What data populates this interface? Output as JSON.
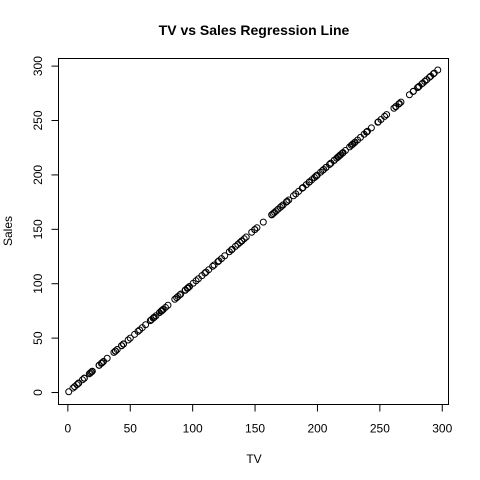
{
  "chart_data": {
    "type": "scatter",
    "title": "TV vs Sales Regression Line",
    "xlabel": "TV",
    "ylabel": "Sales",
    "xlim": [
      -7.5,
      305
    ],
    "ylim": [
      -11,
      307
    ],
    "xticks": [
      0,
      50,
      100,
      150,
      200,
      250,
      300
    ],
    "yticks": [
      0,
      50,
      100,
      150,
      200,
      250,
      300
    ],
    "grid": false,
    "series": [
      {
        "points": [
          [
            0.7,
            0.7
          ],
          [
            4.1,
            4.1
          ],
          [
            5.4,
            5.4
          ],
          [
            7.3,
            7.3
          ],
          [
            8.4,
            8.4
          ],
          [
            8.6,
            8.6
          ],
          [
            8.7,
            8.7
          ],
          [
            11.7,
            11.7
          ],
          [
            13.1,
            13.1
          ],
          [
            13.2,
            13.2
          ],
          [
            17.2,
            17.2
          ],
          [
            17.9,
            17.9
          ],
          [
            18.7,
            18.7
          ],
          [
            19.4,
            19.4
          ],
          [
            19.6,
            19.6
          ],
          [
            25.0,
            25.0
          ],
          [
            25.1,
            25.1
          ],
          [
            26.8,
            26.8
          ],
          [
            27.5,
            27.5
          ],
          [
            28.6,
            28.6
          ],
          [
            31.5,
            31.5
          ],
          [
            36.9,
            36.9
          ],
          [
            38.0,
            38.0
          ],
          [
            38.2,
            38.2
          ],
          [
            39.5,
            39.5
          ],
          [
            43.0,
            43.0
          ],
          [
            43.1,
            43.1
          ],
          [
            44.5,
            44.5
          ],
          [
            44.7,
            44.7
          ],
          [
            48.3,
            48.3
          ],
          [
            50.0,
            50.0
          ],
          [
            53.5,
            53.5
          ],
          [
            56.2,
            56.2
          ],
          [
            57.5,
            57.5
          ],
          [
            59.6,
            59.6
          ],
          [
            62.3,
            62.3
          ],
          [
            66.1,
            66.1
          ],
          [
            66.9,
            66.9
          ],
          [
            68.4,
            68.4
          ],
          [
            69.0,
            69.0
          ],
          [
            69.2,
            69.2
          ],
          [
            70.6,
            70.6
          ],
          [
            73.4,
            73.4
          ],
          [
            74.7,
            74.7
          ],
          [
            75.1,
            75.1
          ],
          [
            75.3,
            75.3
          ],
          [
            75.5,
            75.5
          ],
          [
            76.3,
            76.3
          ],
          [
            76.4,
            76.4
          ],
          [
            78.2,
            78.2
          ],
          [
            80.2,
            80.2
          ],
          [
            85.7,
            85.7
          ],
          [
            87.2,
            87.2
          ],
          [
            88.3,
            88.3
          ],
          [
            89.7,
            89.7
          ],
          [
            90.4,
            90.4
          ],
          [
            93.9,
            93.9
          ],
          [
            94.2,
            94.2
          ],
          [
            95.7,
            95.7
          ],
          [
            96.2,
            96.2
          ],
          [
            97.2,
            97.2
          ],
          [
            97.5,
            97.5
          ],
          [
            100.4,
            100.4
          ],
          [
            102.7,
            102.7
          ],
          [
            104.6,
            104.6
          ],
          [
            107.4,
            107.4
          ],
          [
            109.8,
            109.8
          ],
          [
            110.7,
            110.7
          ],
          [
            112.9,
            112.9
          ],
          [
            116.0,
            116.0
          ],
          [
            117.2,
            117.2
          ],
          [
            120.2,
            120.2
          ],
          [
            121.0,
            121.0
          ],
          [
            123.1,
            123.1
          ],
          [
            125.7,
            125.7
          ],
          [
            129.4,
            129.4
          ],
          [
            131.1,
            131.1
          ],
          [
            131.7,
            131.7
          ],
          [
            134.3,
            134.3
          ],
          [
            136.2,
            136.2
          ],
          [
            137.9,
            137.9
          ],
          [
            139.2,
            139.2
          ],
          [
            139.3,
            139.3
          ],
          [
            139.5,
            139.5
          ],
          [
            141.3,
            141.3
          ],
          [
            142.9,
            142.9
          ],
          [
            147.3,
            147.3
          ],
          [
            149.7,
            149.7
          ],
          [
            149.8,
            149.8
          ],
          [
            151.5,
            151.5
          ],
          [
            156.6,
            156.6
          ],
          [
            163.3,
            163.3
          ],
          [
            163.5,
            163.5
          ],
          [
            164.5,
            164.5
          ],
          [
            165.6,
            165.6
          ],
          [
            166.8,
            166.8
          ],
          [
            168.4,
            168.4
          ],
          [
            170.2,
            170.2
          ],
          [
            171.3,
            171.3
          ],
          [
            172.5,
            172.5
          ],
          [
            175.1,
            175.1
          ],
          [
            175.7,
            175.7
          ],
          [
            177.0,
            177.0
          ],
          [
            180.8,
            180.8
          ],
          [
            182.6,
            182.6
          ],
          [
            184.9,
            184.9
          ],
          [
            187.8,
            187.8
          ],
          [
            187.9,
            187.9
          ],
          [
            188.4,
            188.4
          ],
          [
            191.1,
            191.1
          ],
          [
            193.2,
            193.2
          ],
          [
            193.7,
            193.7
          ],
          [
            195.4,
            195.4
          ],
          [
            197.6,
            197.6
          ],
          [
            198.9,
            198.9
          ],
          [
            199.1,
            199.1
          ],
          [
            199.8,
            199.8
          ],
          [
            202.5,
            202.5
          ],
          [
            204.1,
            204.1
          ],
          [
            205.0,
            205.0
          ],
          [
            206.8,
            206.8
          ],
          [
            206.9,
            206.9
          ],
          [
            209.6,
            209.6
          ],
          [
            210.7,
            210.7
          ],
          [
            210.8,
            210.8
          ],
          [
            213.4,
            213.4
          ],
          [
            213.5,
            213.5
          ],
          [
            215.4,
            215.4
          ],
          [
            216.4,
            216.4
          ],
          [
            216.8,
            216.8
          ],
          [
            217.7,
            217.7
          ],
          [
            218.4,
            218.4
          ],
          [
            218.5,
            218.5
          ],
          [
            219.8,
            219.8
          ],
          [
            220.3,
            220.3
          ],
          [
            220.5,
            220.5
          ],
          [
            222.4,
            222.4
          ],
          [
            225.8,
            225.8
          ],
          [
            227.2,
            227.2
          ],
          [
            228.0,
            228.0
          ],
          [
            228.3,
            228.3
          ],
          [
            229.5,
            229.5
          ],
          [
            230.1,
            230.1
          ],
          [
            232.1,
            232.1
          ],
          [
            234.5,
            234.5
          ],
          [
            237.4,
            237.4
          ],
          [
            239.3,
            239.3
          ],
          [
            239.8,
            239.8
          ],
          [
            240.1,
            240.1
          ],
          [
            243.2,
            243.2
          ],
          [
            248.4,
            248.4
          ],
          [
            248.8,
            248.8
          ],
          [
            250.9,
            250.9
          ],
          [
            253.8,
            253.8
          ],
          [
            255.4,
            255.4
          ],
          [
            261.3,
            261.3
          ],
          [
            262.7,
            262.7
          ],
          [
            262.9,
            262.9
          ],
          [
            265.2,
            265.2
          ],
          [
            265.6,
            265.6
          ],
          [
            266.9,
            266.9
          ],
          [
            273.7,
            273.7
          ],
          [
            276.7,
            276.7
          ],
          [
            276.9,
            276.9
          ],
          [
            280.2,
            280.2
          ],
          [
            280.7,
            280.7
          ],
          [
            281.4,
            281.4
          ],
          [
            283.6,
            283.6
          ],
          [
            284.3,
            284.3
          ],
          [
            286.0,
            286.0
          ],
          [
            287.6,
            287.6
          ],
          [
            289.7,
            289.7
          ],
          [
            290.7,
            290.7
          ],
          [
            292.9,
            292.9
          ],
          [
            293.6,
            293.6
          ],
          [
            296.4,
            296.4
          ]
        ]
      }
    ]
  }
}
